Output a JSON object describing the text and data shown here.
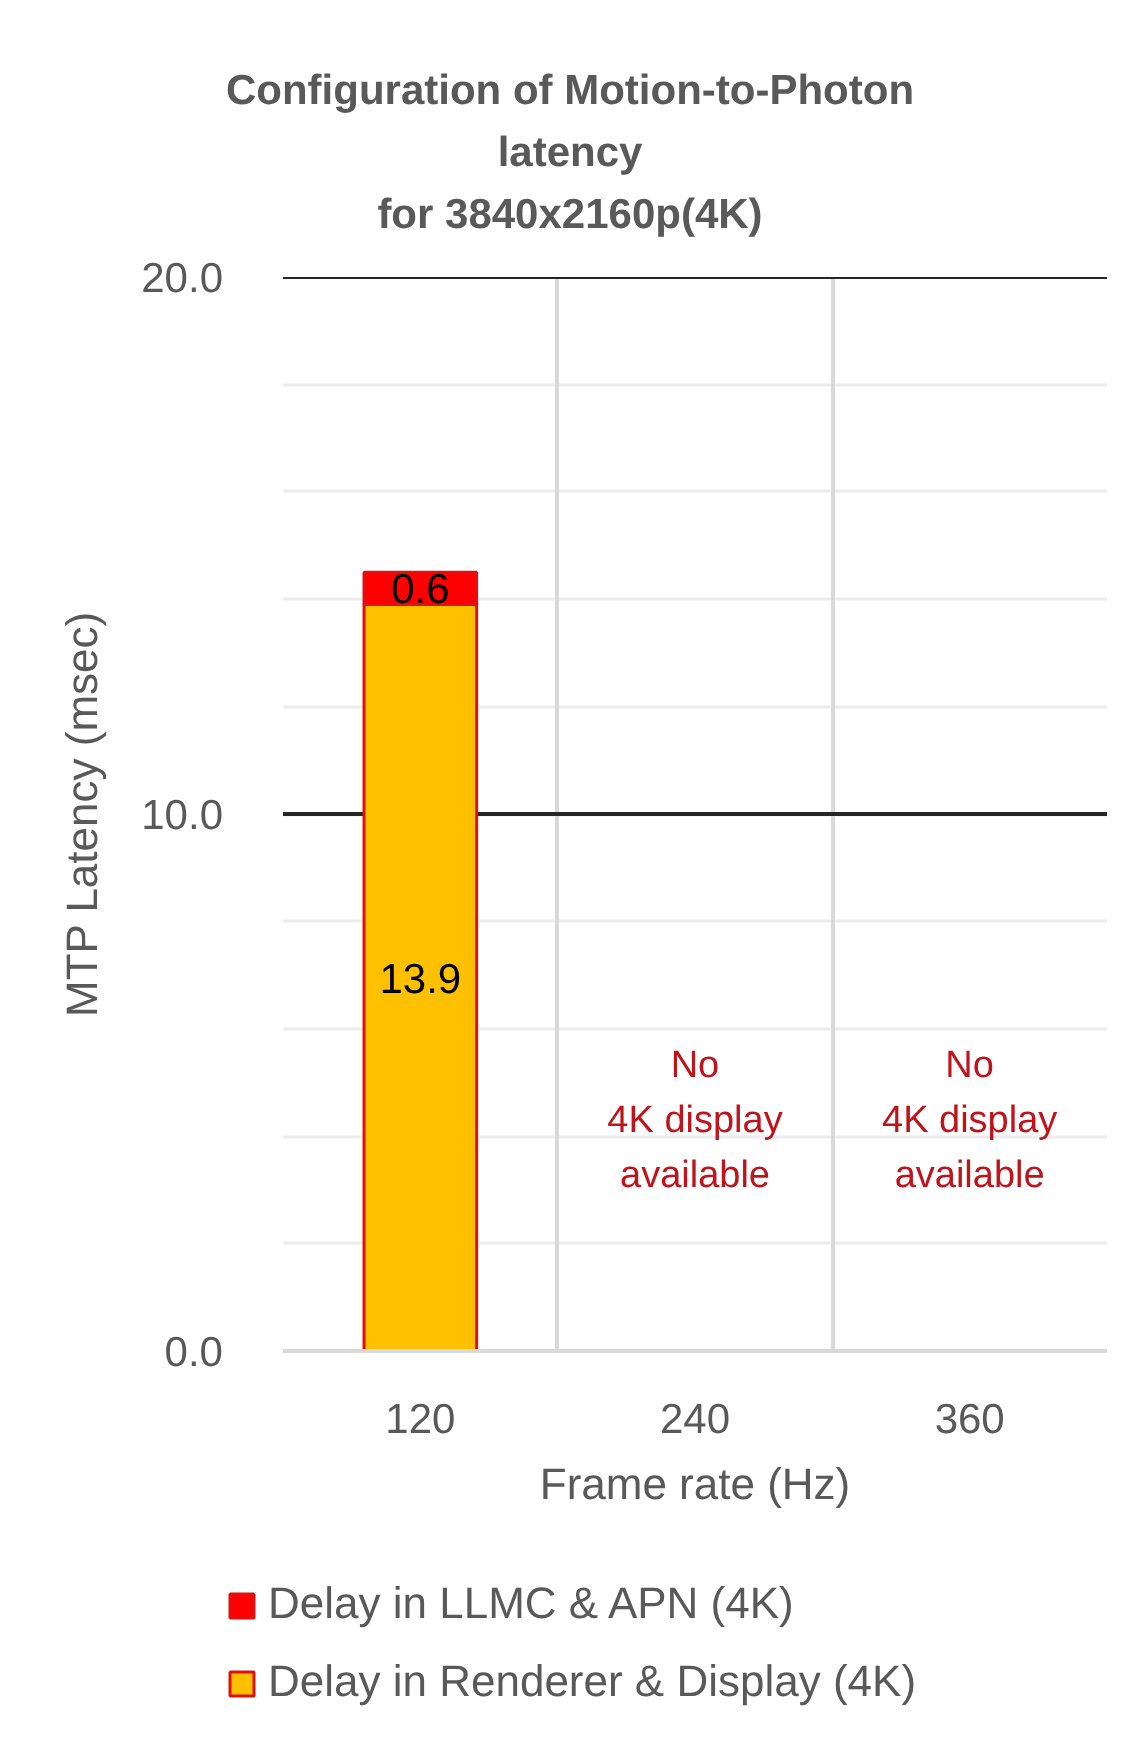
{
  "chart_data": {
    "type": "bar",
    "title": "Configuration of Motion-to-Photon\nlatency\nfor 3840x2160p(4K)",
    "xlabel": "Frame rate (Hz)",
    "ylabel": "MTP Latency (msec)",
    "categories": [
      "120",
      "240",
      "360"
    ],
    "stacked": true,
    "series": [
      {
        "name": "Delay in Renderer & Display (4K)",
        "color": "#ffc000",
        "values": [
          13.9,
          null,
          null
        ]
      },
      {
        "name": "Delay in LLMC & APN (4K)",
        "color": "#ff0000",
        "values": [
          0.6,
          null,
          null
        ]
      }
    ],
    "ylim": [
      0,
      20
    ],
    "yticks": [
      {
        "value": 0,
        "label": "0.0"
      },
      {
        "value": 2,
        "label": null
      },
      {
        "value": 4,
        "label": null
      },
      {
        "value": 6,
        "label": null
      },
      {
        "value": 8,
        "label": null
      },
      {
        "value": 10,
        "label": "10.0"
      },
      {
        "value": 12,
        "label": null
      },
      {
        "value": 14,
        "label": null
      },
      {
        "value": 16,
        "label": null
      },
      {
        "value": 18,
        "label": null
      },
      {
        "value": 20,
        "label": "20.0"
      }
    ],
    "ref_lines": [
      {
        "axis": "y",
        "value": 10,
        "color": "#262626"
      },
      {
        "axis": "y",
        "value": 20,
        "color": "#262626"
      }
    ],
    "grid": true,
    "legend": "bottom",
    "data_labels": true,
    "annotations": [
      "No\n4K display\navailable",
      "No\n4K display\navailable"
    ]
  }
}
